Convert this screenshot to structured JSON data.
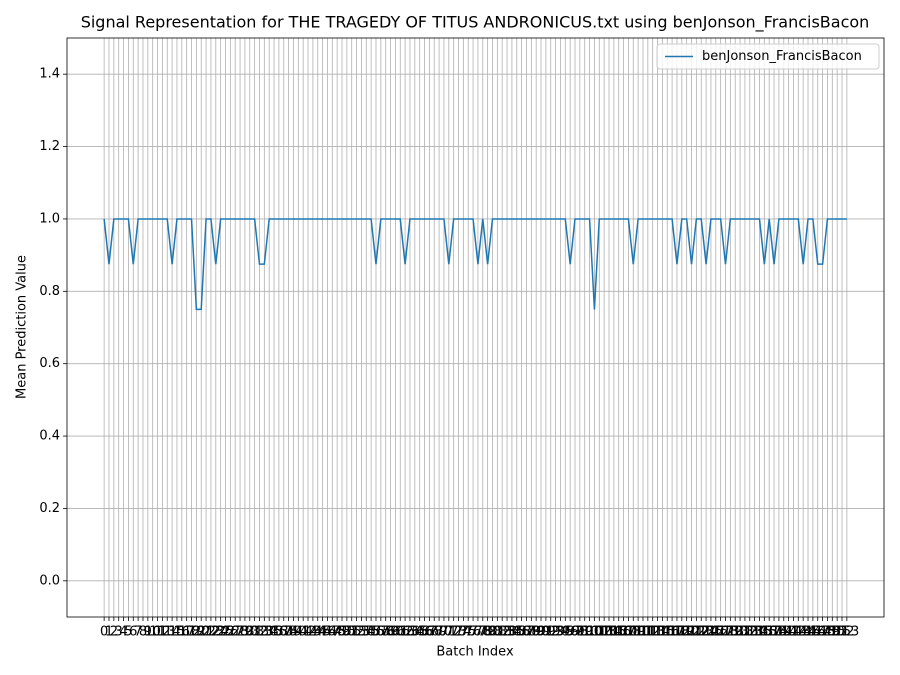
{
  "chart_data": {
    "type": "line",
    "title": "Signal Representation for THE TRAGEDY OF TITUS ANDRONICUS.txt using benJonson_FrancisBacon",
    "xlabel": "Batch Index",
    "ylabel": "Mean Prediction Value",
    "x": [
      0,
      1,
      2,
      3,
      4,
      5,
      6,
      7,
      8,
      9,
      10,
      11,
      12,
      13,
      14,
      15,
      16,
      17,
      18,
      19,
      20,
      21,
      22,
      23,
      24,
      25,
      26,
      27,
      28,
      29,
      30,
      31,
      32,
      33,
      34,
      35,
      36,
      37,
      38,
      39,
      40,
      41,
      42,
      43,
      44,
      45,
      46,
      47,
      48,
      49,
      50,
      51,
      52,
      53,
      54,
      55,
      56,
      57,
      58,
      59,
      60,
      61,
      62,
      63,
      64,
      65,
      66,
      67,
      68,
      69,
      70,
      71,
      72,
      73,
      74,
      75,
      76,
      77,
      78,
      79,
      80,
      81,
      82,
      83,
      84,
      85,
      86,
      87,
      88,
      89,
      90,
      91,
      92,
      93,
      94,
      95,
      96,
      97,
      98,
      99,
      100,
      101,
      102,
      103,
      104,
      105,
      106,
      107,
      108,
      109,
      110,
      111,
      112,
      113,
      114,
      115,
      116,
      117,
      118,
      119,
      120,
      121,
      122,
      123,
      124,
      125,
      126,
      127,
      128,
      129,
      130,
      131,
      132,
      133,
      134,
      135,
      136,
      137,
      138,
      139,
      140,
      141,
      142,
      143,
      144,
      145,
      146,
      147,
      148,
      149,
      150,
      151,
      152,
      153
    ],
    "series": [
      {
        "name": "benJonson_FrancisBacon",
        "color": "#1f77b4",
        "values": [
          1,
          0.875,
          1,
          1,
          1,
          1,
          0.875,
          1,
          1,
          1,
          1,
          1,
          1,
          1,
          0.875,
          1,
          1,
          1,
          1,
          0.75,
          0.75,
          1,
          1,
          0.875,
          1,
          1,
          1,
          1,
          1,
          1,
          1,
          1,
          0.875,
          0.875,
          1,
          1,
          1,
          1,
          1,
          1,
          1,
          1,
          1,
          1,
          1,
          1,
          1,
          1,
          1,
          1,
          1,
          1,
          1,
          1,
          1,
          1,
          0.875,
          1,
          1,
          1,
          1,
          1,
          0.875,
          1,
          1,
          1,
          1,
          1,
          1,
          1,
          1,
          0.875,
          1,
          1,
          1,
          1,
          1,
          0.875,
          1,
          0.875,
          1,
          1,
          1,
          1,
          1,
          1,
          1,
          1,
          1,
          1,
          1,
          1,
          1,
          1,
          1,
          1,
          0.875,
          1,
          1,
          1,
          1,
          0.75,
          1,
          1,
          1,
          1,
          1,
          1,
          1,
          0.875,
          1,
          1,
          1,
          1,
          1,
          1,
          1,
          1,
          0.875,
          1,
          1,
          0.875,
          1,
          1,
          0.875,
          1,
          1,
          1,
          0.875,
          1,
          1,
          1,
          1,
          1,
          1,
          1,
          0.875,
          1,
          0.875,
          1,
          1,
          1,
          1,
          1,
          0.875,
          1,
          1,
          0.875,
          0.875,
          1,
          1,
          1,
          1,
          1
        ]
      }
    ],
    "xlim": [
      -7.65,
      160.65
    ],
    "xticks": [
      0,
      1,
      2,
      3,
      4,
      5,
      6,
      7,
      8,
      9,
      10,
      11,
      12,
      13,
      14,
      15,
      16,
      17,
      18,
      19,
      20,
      21,
      22,
      23,
      24,
      25,
      26,
      27,
      28,
      29,
      30,
      31,
      32,
      33,
      34,
      35,
      36,
      37,
      38,
      39,
      40,
      41,
      42,
      43,
      44,
      45,
      46,
      47,
      48,
      49,
      50,
      51,
      52,
      53,
      54,
      55,
      56,
      57,
      58,
      59,
      60,
      61,
      62,
      63,
      64,
      65,
      66,
      67,
      68,
      69,
      70,
      71,
      72,
      73,
      74,
      75,
      76,
      77,
      78,
      79,
      80,
      81,
      82,
      83,
      84,
      85,
      86,
      87,
      88,
      89,
      90,
      91,
      92,
      93,
      94,
      95,
      96,
      97,
      98,
      99,
      100,
      101,
      102,
      103,
      104,
      105,
      106,
      107,
      108,
      109,
      110,
      111,
      112,
      113,
      114,
      115,
      116,
      117,
      118,
      119,
      120,
      121,
      122,
      123,
      124,
      125,
      126,
      127,
      128,
      129,
      130,
      131,
      132,
      133,
      134,
      135,
      136,
      137,
      138,
      139,
      140,
      141,
      142,
      143,
      144,
      145,
      146,
      147,
      148,
      149,
      150,
      151,
      152,
      153
    ],
    "ylim": [
      -0.1,
      1.5
    ],
    "yticks": [
      {
        "value": 0,
        "label": "0.0"
      },
      0.2,
      0.4,
      0.6,
      0.8,
      {
        "value": 1,
        "label": "1.0"
      },
      1.2,
      1.4
    ],
    "grid": true,
    "legend": "upper right"
  }
}
